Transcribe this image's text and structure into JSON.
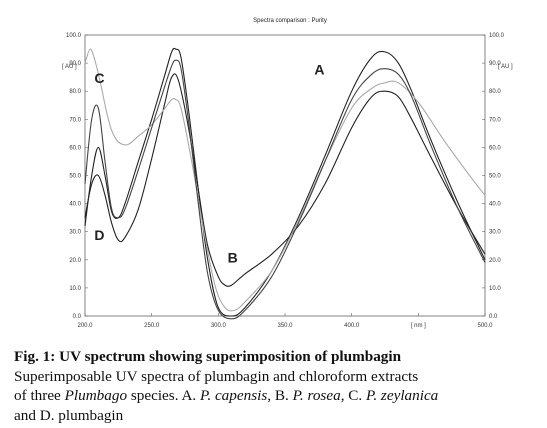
{
  "chart_data": {
    "type": "line",
    "title": "Spectra comparison : Purity",
    "xlabel": "[ nm ]",
    "ylabel_left": "[ AU ]",
    "ylabel_right": "[ AU ]",
    "xlim": [
      200,
      500
    ],
    "ylim": [
      0,
      100
    ],
    "x_ticks": [
      "200.0",
      "250.0",
      "300.0",
      "350.0",
      "400.0",
      "[ nm ]",
      "500.0"
    ],
    "x_tick_values": [
      200,
      250,
      300,
      350,
      400,
      450,
      500
    ],
    "y_ticks": [
      "0.0",
      "10.0",
      "20.0",
      "30.0",
      "40.0",
      "50.0",
      "60.0",
      "70.0",
      "80.0",
      "90.0",
      "100.0"
    ],
    "y_tick_values": [
      0,
      10,
      20,
      30,
      40,
      50,
      60,
      70,
      80,
      90,
      100
    ],
    "grid": false,
    "series": [
      {
        "name": "A",
        "color": "#222222",
        "label_at": [
          372,
          86
        ],
        "x": [
          200,
          205,
          210,
          215,
          220,
          225,
          230,
          240,
          250,
          260,
          265,
          268,
          272,
          278,
          285,
          292,
          300,
          310,
          320,
          340,
          360,
          380,
          400,
          415,
          425,
          435,
          445,
          460,
          480,
          500
        ],
        "y": [
          32,
          50,
          60,
          50,
          37,
          35,
          40,
          55,
          70,
          86,
          94,
          95,
          92,
          72,
          45,
          20,
          3,
          0,
          3,
          16,
          35,
          57,
          80,
          92,
          94,
          90,
          80,
          62,
          40,
          20
        ]
      },
      {
        "name": "B",
        "color": "#222222",
        "label_at": [
          307,
          19
        ],
        "x": [
          200,
          205,
          210,
          215,
          220,
          225,
          230,
          240,
          250,
          260,
          265,
          270,
          278,
          285,
          292,
          300,
          305,
          310,
          320,
          340,
          360,
          380,
          400,
          415,
          425,
          435,
          445,
          460,
          480,
          500
        ],
        "y": [
          35,
          47,
          50,
          43,
          33,
          27,
          28,
          38,
          56,
          76,
          85,
          84,
          66,
          45,
          25,
          14,
          11,
          11,
          15,
          22,
          32,
          47,
          67,
          78,
          80,
          78,
          70,
          56,
          38,
          22
        ]
      },
      {
        "name": "C",
        "color": "#aaaaaa",
        "label_at": [
          207,
          83
        ],
        "x": [
          200,
          204,
          208,
          212,
          216,
          220,
          225,
          232,
          240,
          250,
          260,
          265,
          268,
          272,
          280,
          290,
          298,
          305,
          312,
          320,
          340,
          360,
          380,
          400,
          415,
          425,
          435,
          450,
          470,
          490,
          500
        ],
        "y": [
          90,
          95,
          90,
          82,
          73,
          66,
          62,
          61,
          64,
          68,
          74,
          77,
          77,
          74,
          55,
          28,
          10,
          3,
          2,
          5,
          16,
          34,
          55,
          74,
          81,
          83,
          83,
          76,
          62,
          49,
          43
        ]
      },
      {
        "name": "D",
        "color": "#444444",
        "label_at": [
          207,
          27
        ],
        "x": [
          200,
          205,
          210,
          215,
          220,
          225,
          230,
          240,
          250,
          260,
          265,
          268,
          272,
          278,
          285,
          292,
          300,
          310,
          320,
          340,
          360,
          380,
          400,
          415,
          425,
          435,
          445,
          460,
          480,
          500
        ],
        "y": [
          47,
          70,
          74,
          55,
          38,
          35,
          38,
          52,
          67,
          82,
          89,
          91,
          88,
          68,
          40,
          15,
          2,
          -1,
          2,
          14,
          33,
          55,
          77,
          86,
          88,
          86,
          78,
          60,
          38,
          19
        ]
      }
    ]
  },
  "caption": {
    "title": "Fig. 1: UV spectrum showing superimposition of plumbagin",
    "line2": "Superimposable UV spectra of plumbagin and chloroform extracts",
    "line3_pre": "of three ",
    "line3_genus": "Plumbago",
    "line3_mid": " species. A. ",
    "sp_a": "P. capensis",
    "sep_b": ", B. ",
    "sp_b": "P. rosea",
    "sep_c": ", C. ",
    "sp_c": "P. zeylanica",
    "line4": "and D. plumbagin"
  }
}
